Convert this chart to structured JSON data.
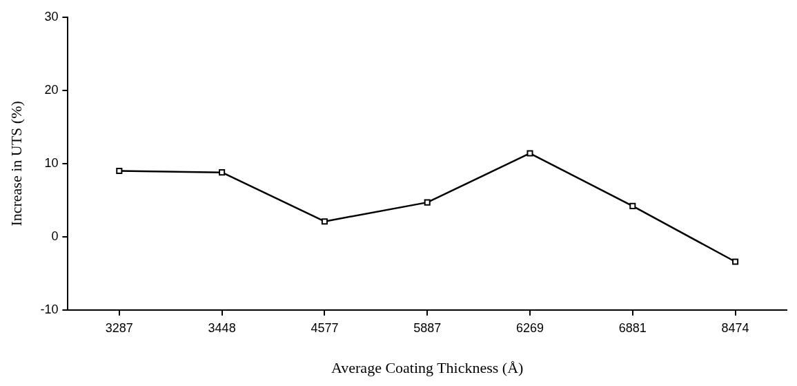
{
  "chart_data": {
    "type": "line",
    "xlabel": "Average Coating Thickness (Å)",
    "ylabel": "Increase in UTS (%)",
    "categories": [
      "3287",
      "3448",
      "4577",
      "5887",
      "6269",
      "6881",
      "8474"
    ],
    "series": [
      {
        "color": "#000000",
        "values": [
          9.0,
          8.8,
          2.1,
          4.7,
          11.4,
          4.2,
          -3.4
        ]
      }
    ],
    "ylim": [
      -10,
      30
    ],
    "yticks": [
      -10,
      0,
      10,
      20,
      30
    ],
    "marker": "square",
    "line_style": "solid",
    "legend": false
  }
}
